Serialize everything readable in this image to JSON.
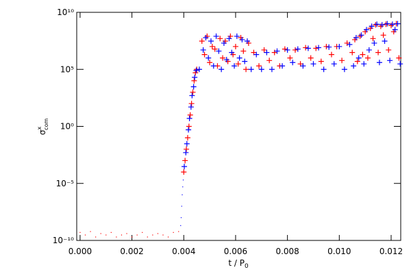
{
  "chart_data": {
    "type": "scatter",
    "x_label": {
      "text": "t / P",
      "subscript": "0"
    },
    "y_label": {
      "symbol": "σ",
      "superscript": "x",
      "subscript": "com"
    },
    "xlim": [
      -0.00013,
      0.01237
    ],
    "ylim": [
      1e-10,
      10000000000.0
    ],
    "ylog": true,
    "xticks": [
      {
        "value": 0,
        "label": "0.000"
      },
      {
        "value": 0.002,
        "label": "0.002"
      },
      {
        "value": 0.004,
        "label": "0.004"
      },
      {
        "value": 0.006,
        "label": "0.006"
      },
      {
        "value": 0.008,
        "label": "0.008"
      },
      {
        "value": 0.01,
        "label": "0.010"
      },
      {
        "value": 0.012,
        "label": "0.012"
      }
    ],
    "yticks": [
      {
        "value": 1e-10,
        "label": "10⁻¹⁰"
      },
      {
        "value": 1e-05,
        "label": "10⁻⁵"
      },
      {
        "value": 1,
        "label": "10⁰"
      },
      {
        "value": 100000.0,
        "label": "10⁵"
      },
      {
        "value": 10000000000.0,
        "label": "10¹⁰"
      }
    ],
    "series": [
      {
        "color": "#ff0000",
        "marker": "dot",
        "x": [
          0,
          0.0002,
          0.0004,
          0.0006,
          0.0008,
          0.001,
          0.0012,
          0.0014,
          0.0016,
          0.0018,
          0.002,
          0.0022,
          0.0024,
          0.0026,
          0.0028,
          0.003,
          0.0032,
          0.0034,
          0.0036,
          0.0038
        ],
        "values": [
          5e-10,
          3e-10,
          6e-10,
          2e-10,
          4e-10,
          3e-10,
          5e-10,
          2e-10,
          3e-10,
          4e-10,
          2e-10,
          3e-10,
          5e-10,
          2e-10,
          3e-10,
          4e-10,
          3e-10,
          2e-10,
          5e-10,
          6e-10
        ]
      },
      {
        "color": "#0000ff",
        "marker": "dot",
        "x": [
          0.00388,
          0.0039,
          0.00392,
          0.00394,
          0.00396,
          0.00398
        ],
        "values": [
          2e-09,
          1e-08,
          1e-07,
          1e-06,
          5e-06,
          2e-05
        ]
      },
      {
        "color": "#ff0000",
        "marker": "cross",
        "x": [
          0.004,
          0.00405,
          0.0041,
          0.00415,
          0.0042,
          0.00425,
          0.0043,
          0.00435,
          0.0044,
          0.00445,
          0.0045,
          0.0047,
          0.0048,
          0.0049,
          0.005,
          0.0051,
          0.0052,
          0.0053,
          0.0054,
          0.0055,
          0.0056,
          0.0057,
          0.0058,
          0.0059,
          0.006,
          0.0061,
          0.0062,
          0.0063,
          0.0064,
          0.0065,
          0.0067,
          0.0069,
          0.0071,
          0.0073,
          0.0075,
          0.0077,
          0.0079,
          0.0081,
          0.0083,
          0.0085,
          0.0087,
          0.0089,
          0.0091,
          0.0093,
          0.0095,
          0.0097,
          0.0099,
          0.0101,
          0.0103,
          0.0105,
          0.0106,
          0.0107,
          0.0108,
          0.0109,
          0.011,
          0.0111,
          0.0112,
          0.0113,
          0.0114,
          0.0115,
          0.0116,
          0.0117,
          0.0118,
          0.0119,
          0.012,
          0.0121,
          0.0122,
          0.0123
        ],
        "values": [
          0.0001,
          0.001,
          0.01,
          0.1,
          1,
          10,
          100,
          1000.0,
          10000.0,
          50000.0,
          100000.0,
          30000000.0,
          2000000.0,
          80000000.0,
          400000.0,
          10000000.0,
          6000000.0,
          200000.0,
          50000000.0,
          1000000.0,
          30000000.0,
          500000.0,
          80000000.0,
          2000000.0,
          10000000.0,
          300000.0,
          60000000.0,
          4000000.0,
          100000.0,
          20000000.0,
          3000000.0,
          200000.0,
          5000000.0,
          600000.0,
          3000000.0,
          200000.0,
          6000000.0,
          1000000.0,
          5000000.0,
          300000.0,
          8000000.0,
          1000000.0,
          7000000.0,
          500000.0,
          10000000.0,
          2000000.0,
          10000000.0,
          600000.0,
          20000000.0,
          3000000.0,
          40000000.0,
          500000.0,
          80000000.0,
          2000000.0,
          200000000.0,
          1000000.0,
          400000000.0,
          50000000.0,
          800000000.0,
          3000000.0,
          600000000.0,
          100000000.0,
          900000000.0,
          5000000.0,
          700000000.0,
          200000000.0,
          1000000000.0,
          1000000.0
        ]
      },
      {
        "color": "#0000ff",
        "marker": "cross",
        "x": [
          0.00402,
          0.00408,
          0.00412,
          0.00418,
          0.00422,
          0.00428,
          0.00432,
          0.00438,
          0.00442,
          0.00448,
          0.0046,
          0.00475,
          0.00485,
          0.00495,
          0.00505,
          0.00515,
          0.00525,
          0.00535,
          0.00545,
          0.00555,
          0.00565,
          0.00575,
          0.00585,
          0.00595,
          0.00605,
          0.00615,
          0.00625,
          0.00635,
          0.00645,
          0.0066,
          0.0068,
          0.007,
          0.0072,
          0.0074,
          0.0076,
          0.0078,
          0.008,
          0.0082,
          0.0084,
          0.0086,
          0.0088,
          0.009,
          0.0092,
          0.0094,
          0.0096,
          0.0098,
          0.01,
          0.0102,
          0.0104,
          0.01055,
          0.01065,
          0.01075,
          0.01085,
          0.01095,
          0.01105,
          0.01115,
          0.01125,
          0.01135,
          0.01145,
          0.01155,
          0.01165,
          0.01175,
          0.01185,
          0.01195,
          0.01205,
          0.01215,
          0.01225,
          0.01235
        ],
        "values": [
          0.0003,
          0.005,
          0.03,
          0.5,
          5,
          50,
          500,
          3000.0,
          20000.0,
          80000.0,
          100000.0,
          5000000.0,
          60000000.0,
          1000000.0,
          30000000.0,
          200000.0,
          80000000.0,
          4000000.0,
          100000.0,
          20000000.0,
          700000.0,
          50000000.0,
          3000000.0,
          200000.0,
          80000000.0,
          1000000.0,
          40000000.0,
          500000.0,
          30000000.0,
          100000.0,
          2000000.0,
          100000.0,
          3000000.0,
          100000.0,
          4000000.0,
          200000.0,
          5000000.0,
          400000.0,
          6000000.0,
          200000.0,
          7000000.0,
          300000.0,
          8000000.0,
          100000.0,
          9000000.0,
          300000.0,
          10000000.0,
          100000.0,
          15000000.0,
          200000.0,
          60000000.0,
          1000000.0,
          100000000.0,
          300000.0,
          300000000.0,
          5000000.0,
          600000000.0,
          20000000.0,
          900000000.0,
          400000.0,
          800000000.0,
          30000000.0,
          1000000000.0,
          600000.0,
          900000000.0,
          300000000.0,
          1000000000.0,
          300000.0
        ]
      }
    ]
  }
}
